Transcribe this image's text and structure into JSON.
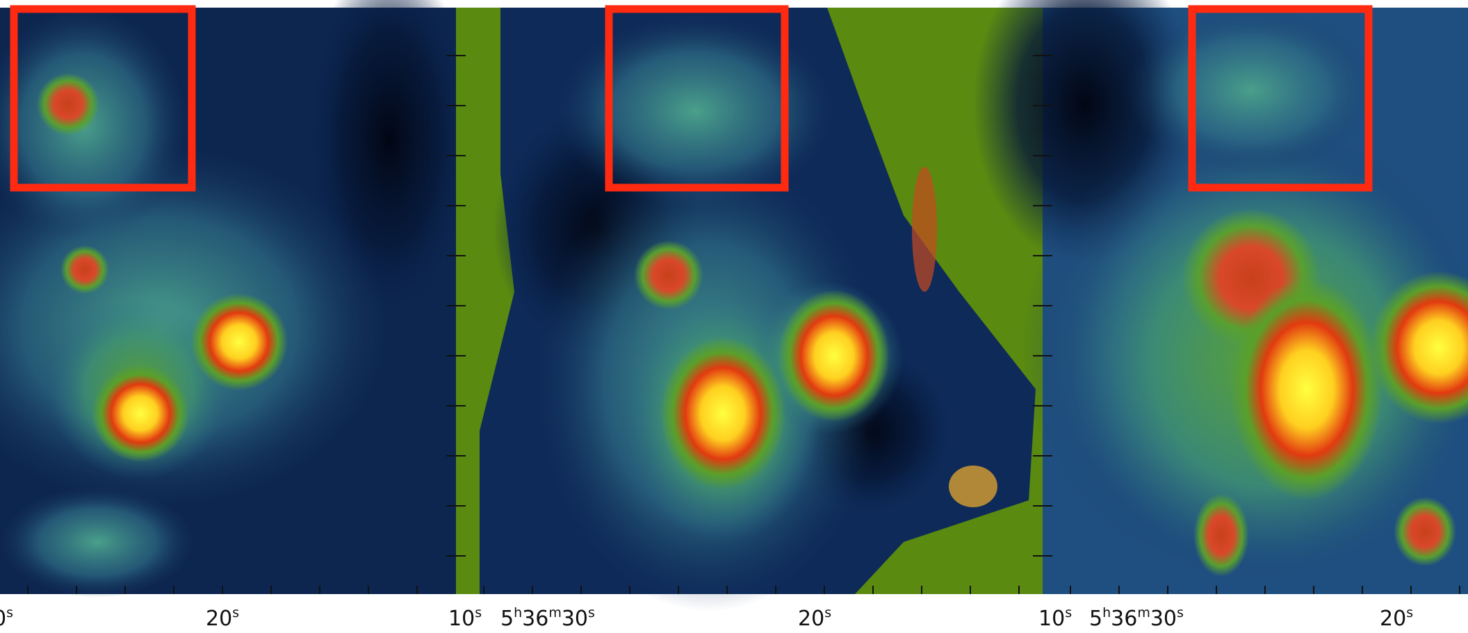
{
  "tick_labels": [
    [
      "0",
      "s"
    ],
    [
      "20",
      "s"
    ],
    [
      "10",
      "s"
    ],
    [
      "5",
      "h",
      "36",
      "m",
      "30",
      "s"
    ],
    [
      "20",
      "s"
    ],
    [
      "10",
      "s"
    ],
    [
      "5",
      "h",
      "36",
      "m",
      "30",
      "s"
    ],
    [
      "20",
      "s"
    ]
  ]
}
